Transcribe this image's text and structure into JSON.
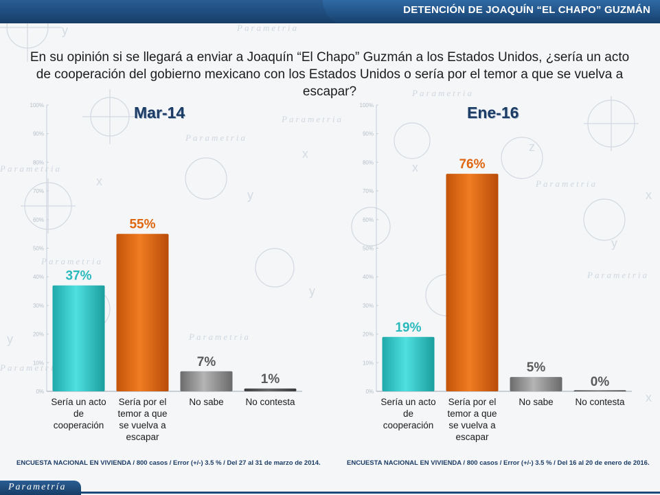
{
  "header": {
    "title": "DETENCIÓN DE JOAQUÍN “EL CHAPO” GUZMÁN"
  },
  "question": "En su opinión si se llegará a enviar a Joaquín “El Chapo” Guzmán a los Estados Unidos, ¿sería un acto de cooperación del gobierno mexicano con los Estados Unidos o sería por el temor a que se vuelva a escapar?",
  "brand": {
    "name": "Parametría"
  },
  "footnotes": {
    "left": "ENCUESTA NACIONAL EN VIVIENDA / 800 casos / Error (+/-) 3.5 % / Del 27 al 31 de marzo de 2014.",
    "right": "ENCUESTA NACIONAL EN VIVIENDA / 800 casos / Error (+/-) 3.5 % / Del 16 al 20 de enero de 2016."
  },
  "colors": {
    "teal": "#2ec4c4",
    "orange": "#e0650f",
    "gray": "#8a8a8a",
    "darkgray": "#555555",
    "title_blue": "#1c3c66"
  },
  "chart_data": [
    {
      "type": "bar",
      "title": "Mar-14",
      "categories": [
        "Sería un acto de cooperación",
        "Sería por el temor a que se vuelva a escapar",
        "No sabe",
        "No contesta"
      ],
      "category_lines": [
        [
          "Sería un acto",
          "de",
          "cooperación"
        ],
        [
          "Sería por el",
          "temor a que",
          "se vuelva a",
          "escapar"
        ],
        [
          "No sabe"
        ],
        [
          "No contesta"
        ]
      ],
      "values": [
        37,
        55,
        7,
        1
      ],
      "data_labels": [
        "37%",
        "55%",
        "7%",
        "1%"
      ],
      "bar_colors": [
        "teal",
        "orange",
        "gray",
        "darkgray"
      ],
      "ylim": [
        0,
        100
      ],
      "yticks": [
        "0%",
        "10%",
        "20%",
        "30%",
        "40%",
        "50%",
        "60%",
        "70%",
        "80%",
        "90%",
        "100%"
      ]
    },
    {
      "type": "bar",
      "title": "Ene-16",
      "categories": [
        "Sería un acto de cooperación",
        "Sería por el temor a que se vuelva a escapar",
        "No sabe",
        "No contesta"
      ],
      "category_lines": [
        [
          "Sería un acto",
          "de",
          "cooperación"
        ],
        [
          "Sería por el",
          "temor a que",
          "se vuelva a",
          "escapar"
        ],
        [
          "No sabe"
        ],
        [
          "No contesta"
        ]
      ],
      "values": [
        19,
        76,
        5,
        0
      ],
      "data_labels": [
        "19%",
        "76%",
        "5%",
        "0%"
      ],
      "bar_colors": [
        "teal",
        "orange",
        "gray",
        "darkgray"
      ],
      "ylim": [
        0,
        100
      ],
      "yticks": [
        "0%",
        "10%",
        "20%",
        "30%",
        "40%",
        "50%",
        "60%",
        "70%",
        "80%",
        "90%",
        "100%"
      ]
    }
  ]
}
